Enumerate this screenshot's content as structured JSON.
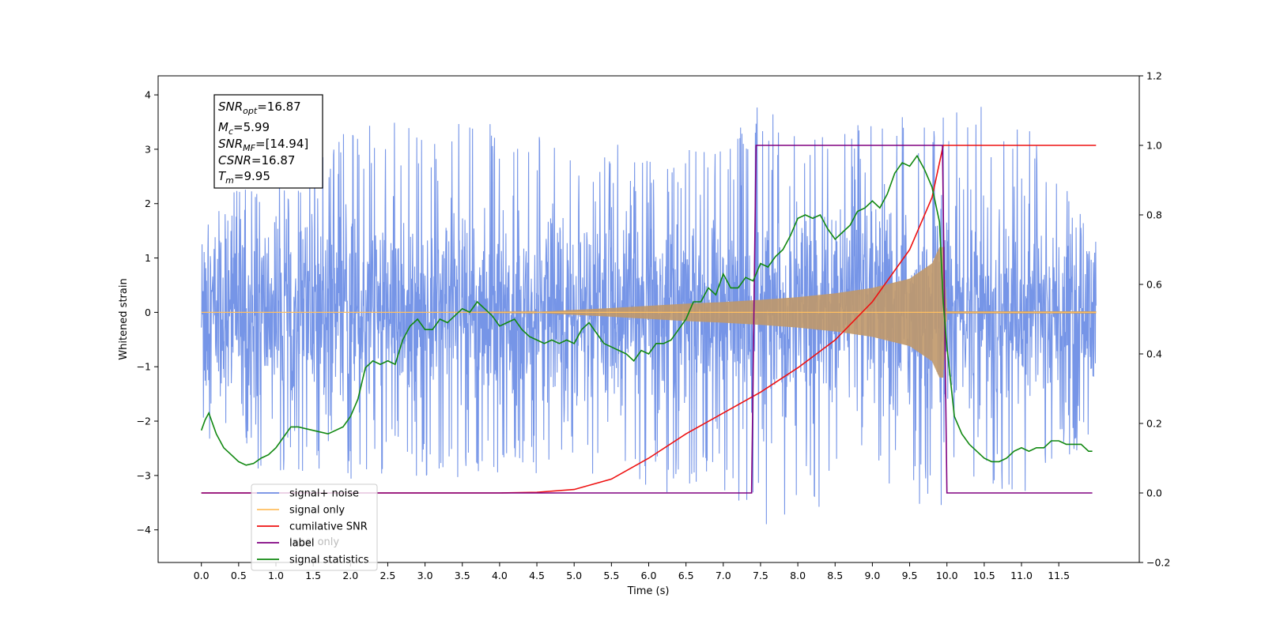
{
  "chart_data": {
    "type": "line",
    "xlabel": "Time (s)",
    "ylabel": "Whitened strain",
    "xlim": [
      -0.58,
      12.58
    ],
    "ylim": [
      -4.6,
      4.35
    ],
    "y2lim": [
      -0.2,
      1.2
    ],
    "xticks": [
      0.0,
      0.5,
      1.0,
      1.5,
      2.0,
      2.5,
      3.0,
      3.5,
      4.0,
      4.5,
      5.0,
      5.5,
      6.0,
      6.5,
      7.0,
      7.5,
      8.0,
      8.5,
      9.0,
      9.5,
      10.0,
      10.5,
      11.0,
      11.5
    ],
    "xtick_labels": [
      "0.0",
      "0.5",
      "1.0",
      "1.5",
      "2.0",
      "2.5",
      "3.0",
      "3.5",
      "4.0",
      "4.5",
      "5.0",
      "5.5",
      "6.0",
      "6.5",
      "7.0",
      "7.5",
      "8.0",
      "8.5",
      "9.0",
      "9.5",
      "10.0",
      "10.5",
      "11.0",
      "11.5"
    ],
    "yticks": [
      -4,
      -3,
      -2,
      -1,
      0,
      1,
      2,
      3,
      4
    ],
    "ytick_labels": [
      "−4",
      "−3",
      "−2",
      "−1",
      "0",
      "1",
      "2",
      "3",
      "4"
    ],
    "y2ticks": [
      -0.2,
      0.0,
      0.2,
      0.4,
      0.6,
      0.8,
      1.0,
      1.2
    ],
    "y2tick_labels": [
      "−0.2",
      "0.0",
      "0.2",
      "0.4",
      "0.6",
      "0.8",
      "1.0",
      "1.2"
    ],
    "annotation": {
      "snr_opt": "=16.87",
      "mc": "=5.99",
      "snr_mf": "=[14.94]",
      "csnr": "=16.87",
      "tm": "=9.95"
    },
    "legend": {
      "placement": "lower-left",
      "entries": [
        {
          "label": "signal+ noise",
          "color": "#6f8fe6"
        },
        {
          "label": "signal only",
          "color": "#ffbf60"
        },
        {
          "label": "cumilative SNR",
          "color": "#ee1111"
        },
        {
          "label": "label",
          "color": "#800080"
        },
        {
          "label": "signal statistics",
          "color": "#118811"
        }
      ],
      "hidden_entry": "label only"
    },
    "series": [
      {
        "name": "signal+ noise",
        "axis": "left",
        "color": "#6f8fe6",
        "x_range": [
          0.0,
          12.0
        ],
        "envelope_x": [
          0.0,
          1.0,
          2.0,
          3.0,
          4.0,
          5.0,
          6.0,
          7.0,
          7.5,
          8.0,
          8.5,
          9.0,
          9.5,
          9.9,
          10.0,
          11.0,
          12.0
        ],
        "envelope_upper": [
          1.9,
          2.6,
          3.5,
          3.5,
          3.5,
          3.2,
          3.0,
          3.1,
          3.85,
          3.5,
          3.5,
          3.5,
          3.7,
          3.85,
          3.9,
          3.7,
          1.3
        ],
        "envelope_lower": [
          -2.2,
          -3.3,
          -3.2,
          -3.1,
          -3.0,
          -3.0,
          -3.4,
          -3.3,
          -3.9,
          -4.05,
          -3.5,
          -3.0,
          -3.4,
          -3.85,
          -3.2,
          -3.5,
          -2.2
        ]
      },
      {
        "name": "signal only",
        "axis": "left",
        "color": "#c0986a",
        "envelope_x": [
          0.0,
          3.0,
          4.5,
          5.5,
          6.0,
          6.5,
          7.0,
          7.5,
          8.0,
          8.5,
          9.0,
          9.5,
          9.8,
          9.9,
          9.95,
          10.0,
          12.0
        ],
        "amplitude": [
          0.0,
          0.0,
          0.01,
          0.08,
          0.12,
          0.16,
          0.19,
          0.23,
          0.28,
          0.35,
          0.45,
          0.62,
          0.9,
          1.2,
          1.2,
          0.02,
          0.02
        ]
      },
      {
        "name": "cumilative SNR",
        "axis": "right",
        "color": "#ee1111",
        "x": [
          0.0,
          4.0,
          4.5,
          5.0,
          5.5,
          6.0,
          6.5,
          7.0,
          7.5,
          8.0,
          8.5,
          9.0,
          9.5,
          9.8,
          9.95,
          10.0,
          12.0
        ],
        "y": [
          0.0,
          0.0,
          0.002,
          0.01,
          0.04,
          0.1,
          0.17,
          0.23,
          0.29,
          0.36,
          0.44,
          0.55,
          0.7,
          0.85,
          1.0,
          1.0,
          1.0
        ]
      },
      {
        "name": "label",
        "axis": "right",
        "color": "#800080",
        "x": [
          0.0,
          7.38,
          7.44,
          9.94,
          10.0,
          11.95
        ],
        "y": [
          0.0,
          0.0,
          1.0,
          1.0,
          0.0,
          0.0
        ]
      },
      {
        "name": "signal statistics",
        "axis": "right",
        "color": "#118811",
        "x": [
          0.0,
          0.05,
          0.1,
          0.2,
          0.3,
          0.4,
          0.5,
          0.6,
          0.7,
          0.8,
          0.9,
          1.0,
          1.1,
          1.2,
          1.3,
          1.5,
          1.7,
          1.9,
          2.0,
          2.1,
          2.2,
          2.3,
          2.4,
          2.5,
          2.6,
          2.7,
          2.8,
          2.9,
          3.0,
          3.1,
          3.2,
          3.3,
          3.4,
          3.5,
          3.6,
          3.7,
          3.8,
          3.9,
          4.0,
          4.1,
          4.2,
          4.3,
          4.4,
          4.5,
          4.6,
          4.7,
          4.8,
          4.9,
          5.0,
          5.1,
          5.2,
          5.3,
          5.4,
          5.5,
          5.6,
          5.7,
          5.8,
          5.9,
          6.0,
          6.1,
          6.2,
          6.3,
          6.4,
          6.5,
          6.6,
          6.7,
          6.8,
          6.9,
          7.0,
          7.1,
          7.2,
          7.3,
          7.4,
          7.5,
          7.6,
          7.7,
          7.8,
          7.9,
          8.0,
          8.1,
          8.2,
          8.3,
          8.4,
          8.5,
          8.6,
          8.7,
          8.8,
          8.9,
          9.0,
          9.1,
          9.2,
          9.3,
          9.4,
          9.5,
          9.6,
          9.7,
          9.8,
          9.9,
          9.95,
          10.0,
          10.1,
          10.2,
          10.3,
          10.4,
          10.5,
          10.6,
          10.7,
          10.8,
          10.9,
          11.0,
          11.1,
          11.2,
          11.3,
          11.4,
          11.5,
          11.6,
          11.7,
          11.8,
          11.9,
          11.95
        ],
        "y": [
          0.18,
          0.21,
          0.23,
          0.17,
          0.13,
          0.11,
          0.09,
          0.08,
          0.085,
          0.1,
          0.11,
          0.13,
          0.16,
          0.19,
          0.19,
          0.18,
          0.17,
          0.19,
          0.22,
          0.27,
          0.36,
          0.38,
          0.37,
          0.38,
          0.37,
          0.44,
          0.48,
          0.5,
          0.47,
          0.47,
          0.5,
          0.49,
          0.51,
          0.53,
          0.52,
          0.55,
          0.53,
          0.51,
          0.48,
          0.49,
          0.5,
          0.47,
          0.45,
          0.44,
          0.43,
          0.44,
          0.43,
          0.44,
          0.43,
          0.47,
          0.49,
          0.46,
          0.43,
          0.42,
          0.41,
          0.4,
          0.38,
          0.41,
          0.4,
          0.43,
          0.43,
          0.44,
          0.47,
          0.5,
          0.55,
          0.55,
          0.59,
          0.57,
          0.63,
          0.59,
          0.59,
          0.62,
          0.61,
          0.66,
          0.65,
          0.68,
          0.7,
          0.74,
          0.79,
          0.8,
          0.79,
          0.8,
          0.76,
          0.73,
          0.75,
          0.77,
          0.81,
          0.82,
          0.84,
          0.82,
          0.86,
          0.92,
          0.95,
          0.94,
          0.97,
          0.93,
          0.88,
          0.78,
          0.55,
          0.42,
          0.22,
          0.17,
          0.14,
          0.12,
          0.1,
          0.09,
          0.09,
          0.1,
          0.12,
          0.13,
          0.12,
          0.13,
          0.13,
          0.15,
          0.15,
          0.14,
          0.14,
          0.14,
          0.12,
          0.12
        ]
      }
    ]
  }
}
